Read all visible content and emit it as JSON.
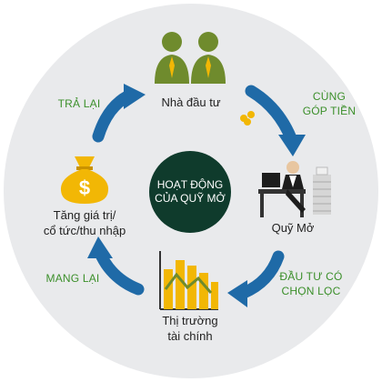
{
  "center": {
    "line1": "HOẠT ĐỘNG",
    "line2": "CỦA QUỸ MỞ"
  },
  "nodes": {
    "investors": {
      "label": "Nhà đầu tư"
    },
    "fund": {
      "label": "Quỹ Mở"
    },
    "market": {
      "line1": "Thị trường",
      "line2": "tài chính"
    },
    "value": {
      "line1": "Tăng giá trị/",
      "line2": "cổ tức/thu nhập"
    }
  },
  "actions": {
    "contribute": {
      "line1": "CÙNG",
      "line2": "GÓP TIỀN"
    },
    "invest": {
      "line1": "ĐẦU TƯ CÓ",
      "line2": "CHỌN LỌC"
    },
    "bring": {
      "line1": "MANG LẠI"
    },
    "return": {
      "line1": "TRẢ LẠI"
    }
  },
  "icons": {
    "investors": "investors-icon",
    "fund": "fund-manager-icon",
    "market": "bar-chart-icon",
    "value": "money-bag-icon"
  },
  "colors": {
    "background_circle": "#e9eaec",
    "center": "#0f3b2c",
    "arrow": "#1f6aa7",
    "action_text": "#3b8f2a",
    "green_icon": "#6f8b2d",
    "gold": "#f2b705"
  }
}
